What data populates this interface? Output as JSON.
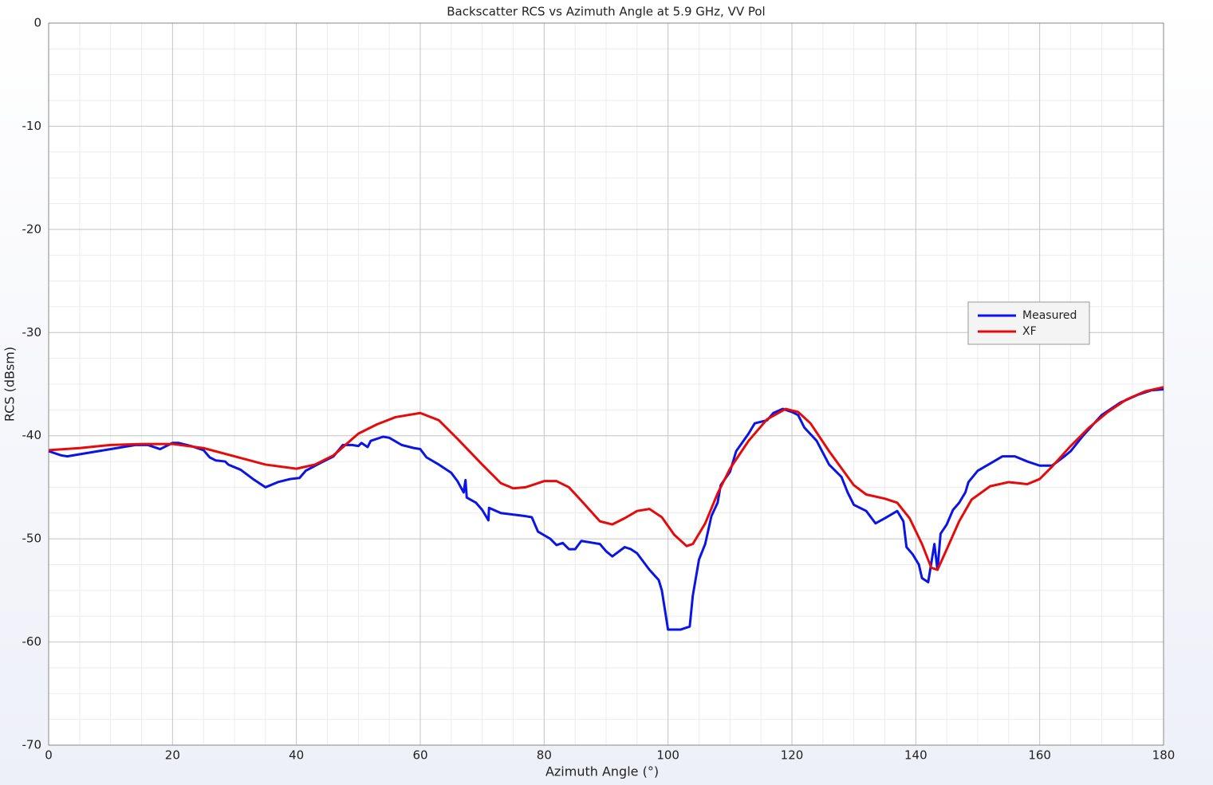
{
  "chart_data": {
    "type": "line",
    "title": "Backscatter RCS vs Azimuth Angle at 5.9 GHz, VV Pol",
    "x_label": "Azimuth Angle (°)",
    "y_label": "RCS (dBsm)",
    "xlim": [
      0,
      180
    ],
    "xticks": [
      0,
      20,
      40,
      60,
      80,
      100,
      120,
      140,
      160,
      180
    ],
    "ylim": [
      -70,
      0
    ],
    "yticks": [
      0,
      -10,
      -20,
      -30,
      -40,
      -50,
      -60,
      -70
    ],
    "grid": true,
    "legend": "right",
    "series": [
      {
        "name": "Measured",
        "color": "#0a14e6",
        "x": [
          0,
          2,
          3,
          5,
          8,
          11,
          14,
          16,
          18,
          20,
          21,
          23,
          25,
          26,
          27,
          28.5,
          29,
          31,
          33,
          35,
          37,
          39,
          40.5,
          41.5,
          44,
          46,
          47.5,
          49,
          50,
          50.5,
          51.5,
          52,
          54,
          55,
          57,
          59,
          60,
          61,
          63,
          65,
          66,
          67,
          67.3,
          67.5,
          69,
          70,
          71,
          71.1,
          73,
          77,
          78,
          79,
          81,
          82,
          83,
          84,
          85,
          86,
          88,
          89,
          90,
          91,
          93,
          94,
          95,
          97,
          98.5,
          99,
          100,
          102,
          103.5,
          104,
          105,
          106,
          107,
          108,
          108.5,
          110,
          111,
          113,
          114,
          116,
          117,
          118.5,
          120,
          121,
          122,
          124,
          126,
          128,
          129,
          130,
          132,
          133.5,
          135,
          137,
          138,
          138.5,
          139.5,
          140.5,
          141,
          142,
          143,
          143.5,
          144,
          145,
          146,
          147,
          148,
          148.5,
          150,
          152,
          154,
          156,
          158,
          160,
          162,
          164,
          165,
          167,
          170,
          173,
          176,
          178,
          180
        ],
        "values": [
          -41.5,
          -41.9,
          -42.0,
          -41.8,
          -41.5,
          -41.2,
          -40.9,
          -40.9,
          -41.3,
          -40.7,
          -40.7,
          -41.0,
          -41.4,
          -42.1,
          -42.4,
          -42.5,
          -42.8,
          -43.3,
          -44.2,
          -45.0,
          -44.5,
          -44.2,
          -44.1,
          -43.4,
          -42.6,
          -42.0,
          -40.9,
          -40.9,
          -41.0,
          -40.7,
          -41.1,
          -40.5,
          -40.1,
          -40.2,
          -40.9,
          -41.2,
          -41.3,
          -42.1,
          -42.8,
          -43.6,
          -44.4,
          -45.5,
          -44.3,
          -46.0,
          -46.5,
          -47.2,
          -48.2,
          -47.0,
          -47.5,
          -47.8,
          -47.9,
          -49.3,
          -50.0,
          -50.6,
          -50.4,
          -51.0,
          -51.0,
          -50.2,
          -50.4,
          -50.5,
          -51.2,
          -51.7,
          -50.8,
          -51.0,
          -51.4,
          -53.0,
          -54.0,
          -55.0,
          -58.8,
          -58.8,
          -58.5,
          -55.5,
          -52.0,
          -50.5,
          -47.8,
          -46.5,
          -44.8,
          -43.5,
          -41.5,
          -39.8,
          -38.8,
          -38.5,
          -37.8,
          -37.4,
          -37.7,
          -38.0,
          -39.2,
          -40.5,
          -42.8,
          -44.0,
          -45.5,
          -46.7,
          -47.3,
          -48.5,
          -48.0,
          -47.3,
          -48.3,
          -50.8,
          -51.5,
          -52.5,
          -53.8,
          -54.2,
          -50.5,
          -53.0,
          -49.5,
          -48.6,
          -47.2,
          -46.5,
          -45.5,
          -44.5,
          -43.4,
          -42.7,
          -42.0,
          -42.0,
          -42.5,
          -42.9,
          -42.9,
          -42.0,
          -41.5,
          -40.0,
          -38.0,
          -36.8,
          -36.0,
          -35.6,
          -35.5
        ]
      },
      {
        "name": "XF",
        "color": "#e60a0a",
        "x": [
          0,
          5,
          10,
          15,
          20,
          25,
          30,
          35,
          40,
          43,
          46,
          50,
          53,
          56,
          60,
          63,
          66,
          70,
          73,
          75,
          77,
          80,
          82,
          84,
          86,
          89,
          91,
          93,
          95,
          97,
          99,
          101,
          103,
          104,
          106,
          108,
          110,
          113,
          116,
          119,
          121,
          123,
          126,
          130,
          132,
          135,
          137,
          139,
          141,
          142.5,
          143.5,
          145,
          147,
          149,
          152,
          155,
          158,
          160,
          162,
          165,
          168,
          171,
          174,
          177,
          180
        ],
        "values": [
          -41.4,
          -41.2,
          -40.9,
          -40.8,
          -40.8,
          -41.2,
          -42.0,
          -42.8,
          -43.2,
          -42.8,
          -41.9,
          -39.8,
          -38.9,
          -38.2,
          -37.8,
          -38.5,
          -40.3,
          -42.8,
          -44.6,
          -45.1,
          -45.0,
          -44.4,
          -44.4,
          -45.0,
          -46.3,
          -48.3,
          -48.6,
          -48.0,
          -47.3,
          -47.1,
          -47.9,
          -49.6,
          -50.7,
          -50.5,
          -48.5,
          -45.6,
          -43.2,
          -40.5,
          -38.4,
          -37.4,
          -37.7,
          -38.8,
          -41.5,
          -44.8,
          -45.7,
          -46.1,
          -46.5,
          -48.0,
          -50.5,
          -52.8,
          -53.0,
          -51.0,
          -48.3,
          -46.2,
          -44.9,
          -44.5,
          -44.7,
          -44.2,
          -43.0,
          -41.0,
          -39.2,
          -37.7,
          -36.5,
          -35.7,
          -35.3
        ]
      }
    ]
  }
}
